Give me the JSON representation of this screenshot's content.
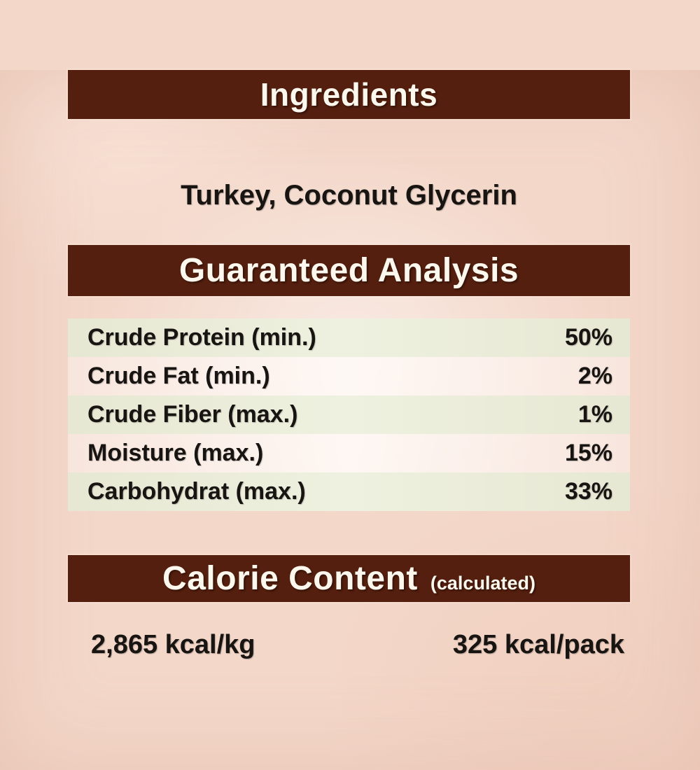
{
  "colors": {
    "background": "#f3d7c9",
    "bar_background": "#541f0e",
    "bar_text": "#fdf8ee",
    "row_green": "#eaecd9",
    "row_light": "#fbf4f0",
    "body_text": "#171412"
  },
  "sections": {
    "ingredients": {
      "title": "Ingredients",
      "list": "Turkey, Coconut Glycerin"
    },
    "analysis": {
      "title": "Guaranteed Analysis",
      "rows": [
        {
          "label": "Crude Protein (min.)",
          "value": "50%"
        },
        {
          "label": "Crude Fat (min.)",
          "value": "2%"
        },
        {
          "label": "Crude Fiber (max.)",
          "value": "1%"
        },
        {
          "label": "Moisture (max.)",
          "value": "15%"
        },
        {
          "label": "Carbohydrat (max.)",
          "value": "33%"
        }
      ]
    },
    "calories": {
      "title": "Calorie Content",
      "subtitle": "(calculated)",
      "per_kg": "2,865 kcal/kg",
      "per_pack": "325 kcal/pack"
    }
  }
}
